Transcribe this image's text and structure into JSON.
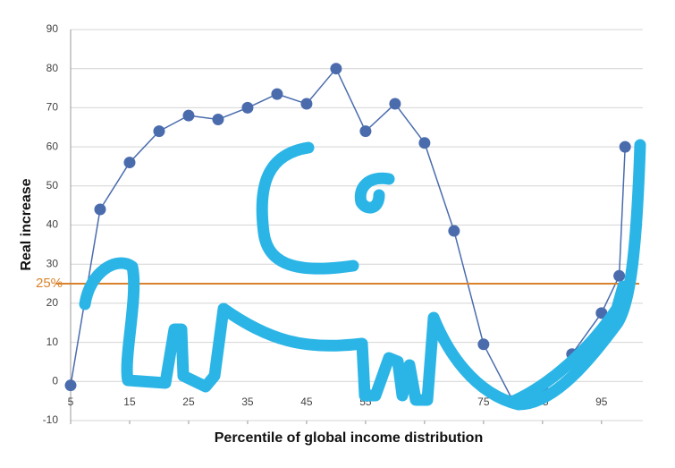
{
  "chart_data": {
    "type": "line",
    "x_label": "Percentile of global income distribution",
    "y_label": "Real increase",
    "x": [
      5,
      10,
      15,
      20,
      25,
      30,
      35,
      40,
      45,
      50,
      55,
      60,
      65,
      70,
      75,
      80,
      85,
      90,
      95,
      98,
      99
    ],
    "values": [
      -1,
      44,
      56,
      64,
      68,
      67,
      70,
      73.5,
      71,
      80,
      64,
      71,
      61,
      38.5,
      9.5,
      -5,
      -2,
      7,
      17.5,
      27,
      60
    ],
    "color": "#4a6cad",
    "xlim": [
      5,
      102
    ],
    "xticks": [
      5,
      15,
      25,
      35,
      45,
      55,
      65,
      75,
      85,
      95
    ],
    "ylim": [
      -10,
      90
    ],
    "yticks": [
      -10,
      0,
      10,
      20,
      30,
      40,
      50,
      60,
      70,
      80,
      90
    ],
    "grid": true,
    "reference_line": {
      "value": 25,
      "label": "25%",
      "color": "#d9822b"
    }
  }
}
